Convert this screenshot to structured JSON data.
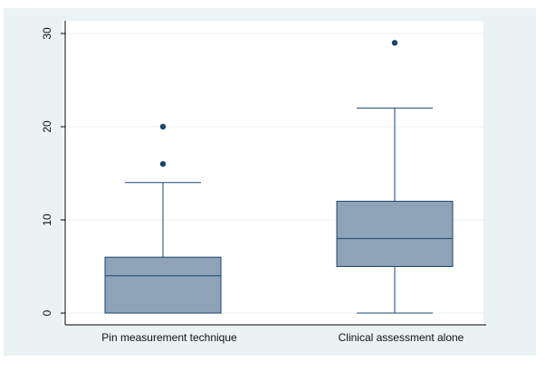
{
  "chart_data": {
    "type": "box",
    "categories": [
      "Pin measurement technique",
      "Clinical assessment alone"
    ],
    "boxes": [
      {
        "category": "Pin measurement technique",
        "min": 0,
        "q1": 0,
        "median": 4,
        "q3": 6,
        "max": 14,
        "outliers": [
          16,
          20
        ]
      },
      {
        "category": "Clinical assessment alone",
        "min": 0,
        "q1": 5,
        "median": 8,
        "q3": 12,
        "max": 22,
        "outliers": [
          29
        ]
      }
    ],
    "yticks": [
      "0",
      "10",
      "20",
      "30"
    ],
    "ylim": [
      0,
      30
    ],
    "grid": true,
    "title": "",
    "xlabel": "",
    "ylabel": ""
  },
  "colors": {
    "outer_background": "#eaf2f3",
    "plot_background": "#ffffff",
    "box_fill": "#8fa3b8",
    "line": "#1a476f",
    "axis": "#000000",
    "grid": "#eaf2f3"
  }
}
